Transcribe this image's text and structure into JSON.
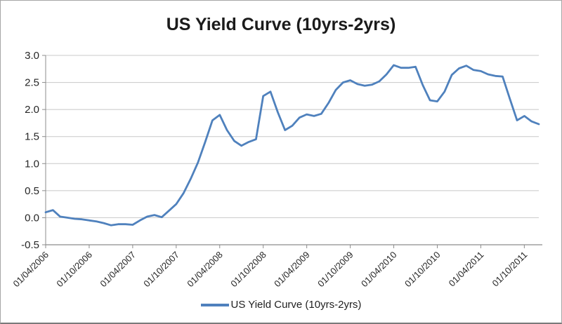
{
  "frame": {
    "background": "#ffffff",
    "border_color": "#a6a6a6"
  },
  "chart_data": {
    "type": "line",
    "title": "US Yield Curve (10yrs-2yrs)",
    "legend": {
      "label": "US Yield Curve (10yrs-2yrs)",
      "position": "bottom"
    },
    "grid": true,
    "line_color": "#4F81BD",
    "grid_color": "#C8C8C8",
    "axis_color": "#8C8C8C",
    "text_color": "#262626",
    "ylim": [
      -0.5,
      3.0
    ],
    "y_ticks": [
      {
        "value": -0.5,
        "label": "-0.5"
      },
      {
        "value": 0.0,
        "label": "0.0"
      },
      {
        "value": 0.5,
        "label": "0.5"
      },
      {
        "value": 1.0,
        "label": "1.0"
      },
      {
        "value": 1.5,
        "label": "1.5"
      },
      {
        "value": 2.0,
        "label": "2.0"
      },
      {
        "value": 2.5,
        "label": "2.5"
      },
      {
        "value": 3.0,
        "label": "3.0"
      }
    ],
    "x_tick_every": 6,
    "x_tick_labels": [
      "01/04/2006",
      "01/10/2006",
      "01/04/2007",
      "01/10/2007",
      "01/04/2008",
      "01/10/2008",
      "01/04/2009",
      "01/10/2009",
      "01/04/2010",
      "01/10/2010",
      "01/04/2011",
      "01/10/2011"
    ],
    "x": [
      "01/04/2006",
      "01/05/2006",
      "01/06/2006",
      "01/07/2006",
      "01/08/2006",
      "01/09/2006",
      "01/10/2006",
      "01/11/2006",
      "01/12/2006",
      "01/01/2007",
      "01/02/2007",
      "01/03/2007",
      "01/04/2007",
      "01/05/2007",
      "01/06/2007",
      "01/07/2007",
      "01/08/2007",
      "01/09/2007",
      "01/10/2007",
      "01/11/2007",
      "01/12/2007",
      "01/01/2008",
      "01/02/2008",
      "01/03/2008",
      "01/04/2008",
      "01/05/2008",
      "01/06/2008",
      "01/07/2008",
      "01/08/2008",
      "01/09/2008",
      "01/10/2008",
      "01/11/2008",
      "01/12/2008",
      "01/01/2009",
      "01/02/2009",
      "01/03/2009",
      "01/04/2009",
      "01/05/2009",
      "01/06/2009",
      "01/07/2009",
      "01/08/2009",
      "01/09/2009",
      "01/10/2009",
      "01/11/2009",
      "01/12/2009",
      "01/01/2010",
      "01/02/2010",
      "01/03/2010",
      "01/04/2010",
      "01/05/2010",
      "01/06/2010",
      "01/07/2010",
      "01/08/2010",
      "01/09/2010",
      "01/10/2010",
      "01/11/2010",
      "01/12/2010",
      "01/01/2011",
      "01/02/2011",
      "01/03/2011",
      "01/04/2011",
      "01/05/2011",
      "01/06/2011",
      "01/07/2011",
      "01/08/2011",
      "01/09/2011",
      "01/10/2011",
      "01/11/2011",
      "01/12/2011"
    ],
    "values": [
      0.1,
      0.14,
      0.02,
      0.0,
      -0.02,
      -0.03,
      -0.05,
      -0.07,
      -0.1,
      -0.14,
      -0.12,
      -0.12,
      -0.13,
      -0.05,
      0.02,
      0.05,
      0.01,
      0.13,
      0.25,
      0.45,
      0.72,
      1.02,
      1.4,
      1.8,
      1.9,
      1.62,
      1.42,
      1.33,
      1.4,
      1.45,
      2.25,
      2.33,
      1.95,
      1.62,
      1.7,
      1.85,
      1.91,
      1.88,
      1.92,
      2.12,
      2.36,
      2.5,
      2.54,
      2.47,
      2.44,
      2.46,
      2.52,
      2.65,
      2.82,
      2.77,
      2.77,
      2.79,
      2.45,
      2.17,
      2.15,
      2.33,
      2.64,
      2.76,
      2.81,
      2.73,
      2.71,
      2.65,
      2.62,
      2.61,
      2.2,
      1.8,
      1.88,
      1.78,
      1.73
    ]
  }
}
